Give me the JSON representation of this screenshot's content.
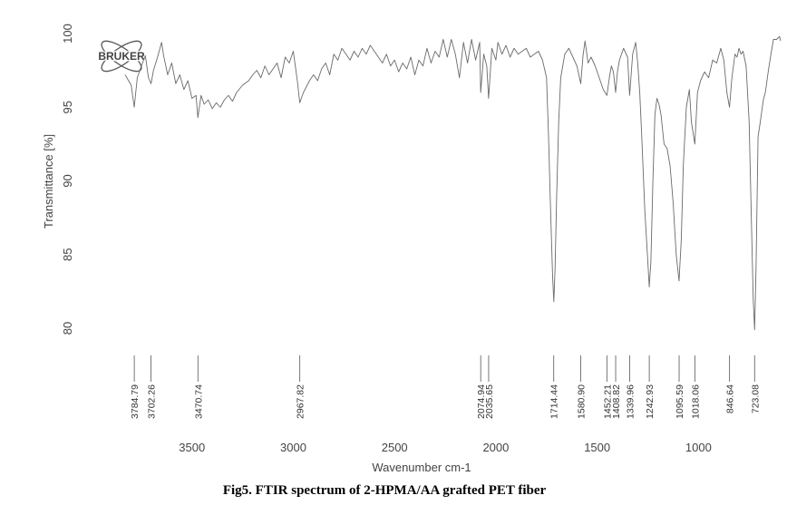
{
  "chart_data": {
    "type": "line",
    "logo": "BRUKER",
    "ylabel": "Transmittance [%]",
    "xlabel": "Wavenumber cm-1",
    "caption": "Fig5. FTIR spectrum of 2-HPMA/AA grafted PET fiber",
    "color": "#6a6a6a",
    "xlim": [
      3830,
      590
    ],
    "ylim": [
      80,
      100
    ],
    "xticks": [
      3500,
      3000,
      2500,
      2000,
      1500,
      1000
    ],
    "yticks": [
      80,
      85,
      90,
      95,
      100
    ],
    "peaks": [
      3784.79,
      3702.26,
      3470.74,
      2967.82,
      2074.94,
      2035.65,
      1714.44,
      {
        "value": 1580.9,
        "label": "1580.90"
      },
      1452.21,
      1408.82,
      1339.96,
      1242.93,
      1095.59,
      1018.06,
      846.64,
      723.08
    ],
    "x": [
      3830,
      3800,
      3785,
      3770,
      3750,
      3730,
      3715,
      3702,
      3690,
      3670,
      3650,
      3640,
      3620,
      3600,
      3580,
      3560,
      3540,
      3520,
      3500,
      3480,
      3471,
      3455,
      3440,
      3420,
      3400,
      3380,
      3360,
      3340,
      3320,
      3300,
      3280,
      3250,
      3220,
      3200,
      3180,
      3160,
      3140,
      3120,
      3100,
      3080,
      3060,
      3040,
      3020,
      3000,
      2980,
      2968,
      2950,
      2920,
      2900,
      2880,
      2860,
      2840,
      2820,
      2800,
      2780,
      2760,
      2740,
      2720,
      2700,
      2680,
      2660,
      2640,
      2620,
      2600,
      2580,
      2560,
      2540,
      2520,
      2500,
      2480,
      2460,
      2440,
      2420,
      2400,
      2380,
      2360,
      2340,
      2320,
      2300,
      2280,
      2260,
      2240,
      2220,
      2200,
      2180,
      2160,
      2140,
      2120,
      2100,
      2080,
      2075,
      2060,
      2045,
      2036,
      2020,
      2000,
      1990,
      1970,
      1950,
      1930,
      1910,
      1890,
      1870,
      1850,
      1830,
      1810,
      1790,
      1770,
      1750,
      1740,
      1730,
      1720,
      1714,
      1708,
      1700,
      1690,
      1680,
      1660,
      1640,
      1620,
      1600,
      1581,
      1570,
      1560,
      1545,
      1530,
      1510,
      1490,
      1470,
      1452,
      1440,
      1430,
      1420,
      1409,
      1400,
      1390,
      1370,
      1350,
      1340,
      1325,
      1310,
      1300,
      1290,
      1280,
      1265,
      1250,
      1243,
      1235,
      1225,
      1215,
      1205,
      1195,
      1185,
      1170,
      1155,
      1140,
      1125,
      1110,
      1096,
      1085,
      1075,
      1060,
      1045,
      1035,
      1018,
      1005,
      990,
      970,
      950,
      930,
      910,
      890,
      875,
      860,
      847,
      835,
      820,
      810,
      800,
      790,
      780,
      765,
      750,
      740,
      730,
      723,
      716,
      706,
      695,
      680,
      670,
      655,
      640,
      630,
      615,
      600,
      595
    ],
    "values": [
      97.2,
      96.5,
      95.0,
      97.0,
      97.8,
      98.5,
      97.0,
      96.6,
      97.5,
      98.4,
      99.4,
      98.5,
      97.2,
      98.0,
      96.6,
      97.2,
      96.2,
      96.8,
      95.6,
      95.8,
      94.3,
      95.8,
      95.2,
      95.5,
      94.9,
      95.3,
      95.0,
      95.5,
      95.8,
      95.4,
      96.0,
      96.5,
      96.8,
      97.2,
      97.5,
      97.0,
      97.8,
      97.2,
      97.6,
      98.0,
      97.0,
      98.4,
      98.0,
      98.8,
      96.8,
      95.3,
      96.0,
      96.8,
      97.2,
      96.8,
      97.6,
      98.0,
      97.2,
      98.6,
      98.2,
      99.0,
      98.6,
      98.2,
      98.8,
      98.4,
      99.0,
      98.6,
      99.2,
      98.8,
      98.4,
      98.0,
      98.6,
      97.8,
      98.2,
      97.4,
      98.0,
      97.6,
      98.4,
      97.2,
      98.2,
      97.8,
      99.0,
      98.0,
      98.8,
      98.4,
      99.6,
      98.4,
      99.6,
      98.6,
      97.0,
      99.4,
      98.0,
      99.6,
      98.2,
      99.4,
      96.0,
      98.6,
      97.8,
      95.6,
      99.0,
      98.2,
      99.4,
      98.6,
      99.2,
      98.4,
      99.0,
      98.6,
      98.8,
      99.0,
      98.4,
      98.6,
      98.8,
      98.2,
      97.0,
      93.0,
      88.0,
      83.5,
      81.8,
      84.0,
      89.0,
      94.0,
      97.0,
      98.6,
      99.0,
      98.4,
      97.8,
      96.6,
      98.5,
      99.5,
      98.0,
      98.4,
      97.8,
      97.0,
      96.2,
      95.8,
      97.0,
      97.8,
      97.4,
      96.0,
      97.4,
      98.2,
      99.0,
      98.4,
      95.8,
      98.6,
      99.4,
      98.0,
      96.0,
      93.0,
      88.0,
      84.5,
      82.8,
      84.5,
      90.0,
      94.5,
      95.6,
      95.2,
      94.5,
      92.5,
      92.2,
      91.0,
      88.5,
      85.0,
      83.2,
      86.0,
      91.0,
      95.0,
      96.2,
      94.0,
      92.5,
      96.0,
      96.8,
      97.4,
      97.0,
      98.2,
      98.0,
      99.0,
      98.2,
      96.0,
      95.0,
      97.0,
      98.6,
      98.4,
      99.0,
      98.6,
      98.8,
      97.8,
      94.0,
      88.0,
      82.0,
      79.9,
      84.0,
      93.0,
      94.0,
      95.5,
      96.0,
      97.5,
      98.8,
      99.6,
      99.6,
      99.8,
      99.5
    ]
  }
}
